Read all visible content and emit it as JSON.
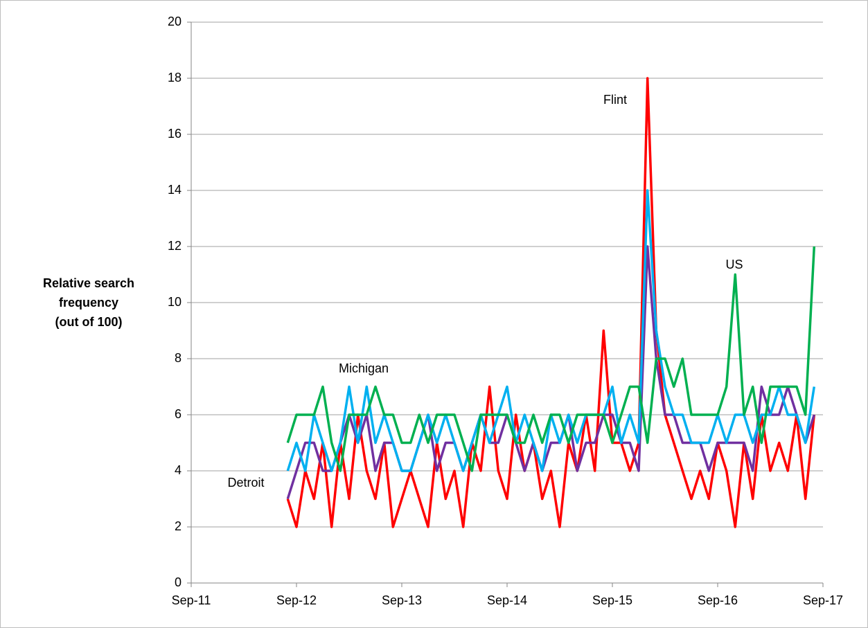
{
  "chart_data": {
    "type": "line",
    "ylabel": [
      "Relative search",
      "frequency",
      "(out of 100)"
    ],
    "x": [
      "2012-08",
      "2012-09",
      "2012-10",
      "2012-11",
      "2012-12",
      "2013-01",
      "2013-02",
      "2013-03",
      "2013-04",
      "2013-05",
      "2013-06",
      "2013-07",
      "2013-08",
      "2013-09",
      "2013-10",
      "2013-11",
      "2013-12",
      "2014-01",
      "2014-02",
      "2014-03",
      "2014-04",
      "2014-05",
      "2014-06",
      "2014-07",
      "2014-08",
      "2014-09",
      "2014-10",
      "2014-11",
      "2014-12",
      "2015-01",
      "2015-02",
      "2015-03",
      "2015-04",
      "2015-05",
      "2015-06",
      "2015-07",
      "2015-08",
      "2015-09",
      "2015-10",
      "2015-11",
      "2015-12",
      "2016-01",
      "2016-02",
      "2016-03",
      "2016-04",
      "2016-05",
      "2016-06",
      "2016-07",
      "2016-08",
      "2016-09",
      "2016-10",
      "2016-11",
      "2016-12",
      "2017-01",
      "2017-02",
      "2017-03",
      "2017-04",
      "2017-05",
      "2017-06",
      "2017-07",
      "2017-08"
    ],
    "series": [
      {
        "name": "Flint",
        "color": "#ff0000",
        "values": [
          3,
          2,
          4,
          3,
          5,
          2,
          5,
          3,
          6,
          4,
          3,
          5,
          2,
          3,
          4,
          3,
          2,
          5,
          3,
          4,
          2,
          5,
          4,
          7,
          4,
          3,
          6,
          4,
          5,
          3,
          4,
          2,
          5,
          4,
          6,
          4,
          9,
          5,
          5,
          4,
          5,
          18,
          9,
          6,
          5,
          4,
          3,
          4,
          3,
          5,
          4,
          2,
          5,
          3,
          6,
          4,
          5,
          4,
          6,
          3,
          6
        ]
      },
      {
        "name": "Detroit",
        "color": "#7030a0",
        "values": [
          3,
          4,
          5,
          5,
          4,
          4,
          5,
          6,
          5,
          6,
          4,
          5,
          5,
          4,
          4,
          5,
          6,
          4,
          5,
          5,
          4,
          5,
          6,
          5,
          5,
          6,
          5,
          4,
          5,
          4,
          5,
          5,
          6,
          4,
          5,
          5,
          6,
          6,
          5,
          5,
          4,
          12,
          8,
          6,
          6,
          5,
          5,
          5,
          4,
          5,
          5,
          5,
          5,
          4,
          7,
          6,
          6,
          7,
          6,
          5,
          6
        ]
      },
      {
        "name": "Michigan",
        "color": "#00b0f0",
        "values": [
          4,
          5,
          4,
          6,
          5,
          4,
          5,
          7,
          5,
          7,
          5,
          6,
          5,
          4,
          4,
          5,
          6,
          5,
          6,
          5,
          4,
          5,
          6,
          5,
          6,
          7,
          5,
          6,
          5,
          4,
          6,
          5,
          6,
          5,
          6,
          6,
          6,
          7,
          5,
          6,
          5,
          14,
          9,
          7,
          6,
          6,
          5,
          5,
          5,
          6,
          5,
          6,
          6,
          5,
          6,
          6,
          7,
          6,
          6,
          5,
          7
        ]
      },
      {
        "name": "US",
        "color": "#00b050",
        "values": [
          5,
          6,
          6,
          6,
          7,
          5,
          4,
          6,
          6,
          6,
          7,
          6,
          6,
          5,
          5,
          6,
          5,
          6,
          6,
          6,
          5,
          4,
          6,
          6,
          6,
          6,
          5,
          5,
          6,
          5,
          6,
          6,
          5,
          6,
          6,
          6,
          6,
          5,
          6,
          7,
          7,
          5,
          8,
          8,
          7,
          8,
          6,
          6,
          6,
          6,
          7,
          11,
          6,
          7,
          5,
          7,
          7,
          7,
          7,
          6,
          12
        ]
      }
    ],
    "xlim": [
      "2011-09",
      "2017-09"
    ],
    "xticks": [
      {
        "value": "2011-09",
        "label": "Sep-11"
      },
      {
        "value": "2012-09",
        "label": "Sep-12"
      },
      {
        "value": "2013-09",
        "label": "Sep-13"
      },
      {
        "value": "2014-09",
        "label": "Sep-14"
      },
      {
        "value": "2015-09",
        "label": "Sep-15"
      },
      {
        "value": "2016-09",
        "label": "Sep-16"
      },
      {
        "value": "2017-09",
        "label": "Sep-17"
      }
    ],
    "ylim": [
      0,
      20
    ],
    "yticks": [
      0,
      2,
      4,
      6,
      8,
      10,
      12,
      14,
      16,
      18,
      20
    ],
    "grid": true
  }
}
